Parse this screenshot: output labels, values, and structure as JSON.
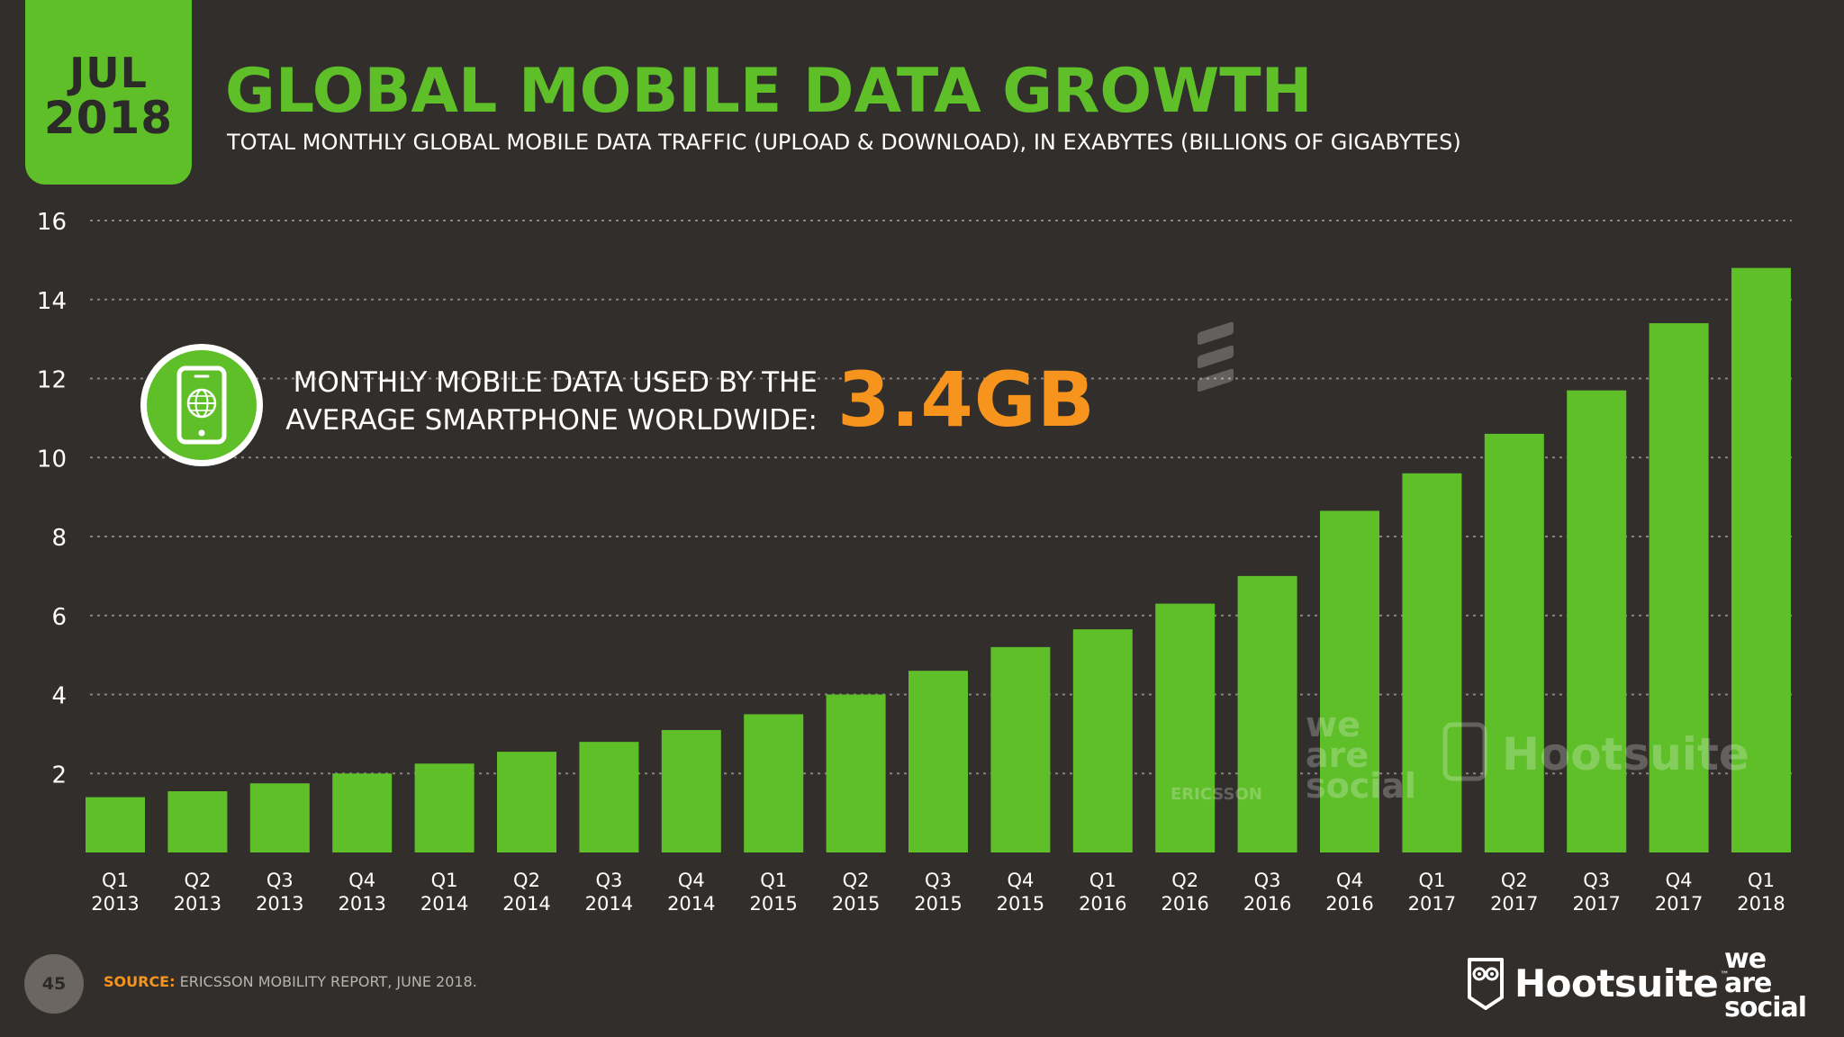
{
  "badge": {
    "month": "JUL",
    "year": "2018"
  },
  "header": {
    "title": "GLOBAL MOBILE DATA GROWTH",
    "subtitle": "TOTAL MONTHLY GLOBAL MOBILE DATA TRAFFIC (UPLOAD & DOWNLOAD), IN EXABYTES (BILLIONS OF GIGABYTES)"
  },
  "callout": {
    "line1": "MONTHLY MOBILE DATA USED BY THE",
    "line2": "AVERAGE SMARTPHONE WORLDWIDE:",
    "value": "3.4GB",
    "icon": "smartphone-globe-icon"
  },
  "footer": {
    "page_number": "45",
    "source_label": "SOURCE:",
    "source_text": "ERICSSON MOBILITY REPORT, JUNE 2018.",
    "brand1": "Hootsuite",
    "brand1_tm": "™",
    "brand2_lines": [
      "we",
      "are",
      "social"
    ]
  },
  "watermarks": {
    "ericsson": "ERICSSON",
    "was": [
      "we",
      "are",
      "social"
    ],
    "hootsuite": "Hootsuite"
  },
  "colors": {
    "background": "#312e2b",
    "accent_green": "#5ebf28",
    "highlight_orange": "#f7941d",
    "gridline": "#8a8580"
  },
  "chart_data": {
    "type": "bar",
    "title": "GLOBAL MOBILE DATA GROWTH",
    "ylabel": "",
    "xlabel": "",
    "ylim": [
      0,
      16
    ],
    "yticks": [
      2,
      4,
      6,
      8,
      10,
      12,
      14,
      16
    ],
    "grid": true,
    "categories": [
      [
        "Q1",
        "2013"
      ],
      [
        "Q2",
        "2013"
      ],
      [
        "Q3",
        "2013"
      ],
      [
        "Q4",
        "2013"
      ],
      [
        "Q1",
        "2014"
      ],
      [
        "Q2",
        "2014"
      ],
      [
        "Q3",
        "2014"
      ],
      [
        "Q4",
        "2014"
      ],
      [
        "Q1",
        "2015"
      ],
      [
        "Q2",
        "2015"
      ],
      [
        "Q3",
        "2015"
      ],
      [
        "Q4",
        "2015"
      ],
      [
        "Q1",
        "2016"
      ],
      [
        "Q2",
        "2016"
      ],
      [
        "Q3",
        "2016"
      ],
      [
        "Q4",
        "2016"
      ],
      [
        "Q1",
        "2017"
      ],
      [
        "Q2",
        "2017"
      ],
      [
        "Q3",
        "2017"
      ],
      [
        "Q4",
        "2017"
      ],
      [
        "Q1",
        "2018"
      ]
    ],
    "values": [
      1.4,
      1.55,
      1.75,
      2.0,
      2.25,
      2.55,
      2.8,
      3.1,
      3.5,
      4.0,
      4.6,
      5.2,
      5.65,
      6.3,
      7.0,
      8.65,
      9.6,
      10.6,
      11.7,
      13.4,
      14.8
    ]
  }
}
